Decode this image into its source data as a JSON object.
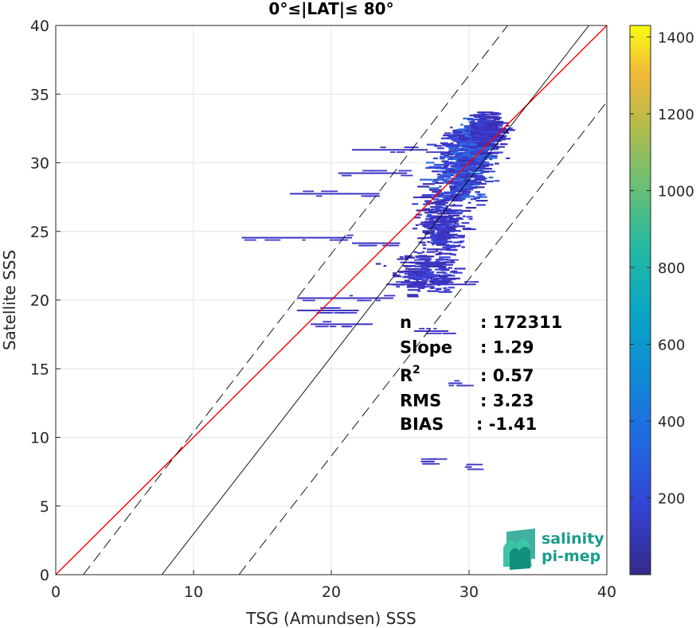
{
  "chart_data": {
    "type": "heatmap",
    "title": "0°≤|LAT|≤ 80°",
    "xlabel": "TSG (Amundsen) SSS",
    "ylabel": "Satellite SSS",
    "xlim": [
      0,
      40
    ],
    "ylim": [
      0,
      40
    ],
    "xticks": [
      0,
      10,
      20,
      30,
      40
    ],
    "yticks": [
      0,
      5,
      10,
      15,
      20,
      25,
      30,
      35,
      40
    ],
    "grid": true,
    "colorbar": {
      "range": [
        0,
        1430
      ],
      "ticks": [
        200,
        400,
        600,
        800,
        1000,
        1200,
        1400
      ],
      "colormap": "parula"
    },
    "lines": [
      {
        "kind": "identity",
        "color": "#ff0000",
        "points": [
          [
            0,
            0
          ],
          [
            40,
            40
          ]
        ]
      },
      {
        "kind": "regression",
        "color": "#000000",
        "points": [
          [
            7.7,
            0
          ],
          [
            38.7,
            40
          ]
        ]
      },
      {
        "kind": "regression-plus-2rms",
        "color": "#000000",
        "dash": true,
        "points": [
          [
            2.0,
            0
          ],
          [
            32.8,
            40
          ]
        ]
      },
      {
        "kind": "regression-minus-2rms",
        "color": "#000000",
        "dash": true,
        "points": [
          [
            13.3,
            0
          ],
          [
            44,
            39.6
          ]
        ]
      }
    ],
    "density_clusters": [
      {
        "x": 29.5,
        "y": 29.5,
        "sx": 1.6,
        "sy": 2.2,
        "weight": 1.0
      },
      {
        "x": 30.5,
        "y": 31.5,
        "sx": 1.3,
        "sy": 1.4,
        "weight": 0.8
      },
      {
        "x": 28.0,
        "y": 25.5,
        "sx": 1.4,
        "sy": 2.0,
        "weight": 0.6
      },
      {
        "x": 27.0,
        "y": 22.0,
        "sx": 2.0,
        "sy": 1.2,
        "weight": 0.45
      },
      {
        "x": 31.5,
        "y": 32.5,
        "sx": 1.0,
        "sy": 1.0,
        "weight": 0.5
      }
    ],
    "streaks": [
      {
        "x1": 13.5,
        "x2": 21.5,
        "y": 24.6
      },
      {
        "x1": 21.5,
        "x2": 25.0,
        "y": 24.2
      },
      {
        "x1": 17.0,
        "x2": 23.5,
        "y": 27.8
      },
      {
        "x1": 20.5,
        "x2": 25.5,
        "y": 29.3
      },
      {
        "x1": 21.5,
        "x2": 27.0,
        "y": 31.0
      },
      {
        "x1": 17.5,
        "x2": 24.5,
        "y": 20.2
      },
      {
        "x1": 17.5,
        "x2": 22.0,
        "y": 19.3
      },
      {
        "x1": 18.5,
        "x2": 23.0,
        "y": 18.3
      },
      {
        "x1": 25.0,
        "x2": 29.0,
        "y": 22.8
      },
      {
        "x1": 24.0,
        "x2": 30.5,
        "y": 21.2
      },
      {
        "x1": 26.0,
        "x2": 28.5,
        "y": 17.8
      },
      {
        "x1": 28.5,
        "x2": 29.5,
        "y": 14.0
      },
      {
        "x1": 26.5,
        "x2": 27.5,
        "y": 8.3
      },
      {
        "x1": 29.7,
        "x2": 30.2,
        "y": 7.9
      }
    ],
    "stats": [
      {
        "label": "n",
        "value": ": 172311",
        "superscript": ""
      },
      {
        "label": "Slope",
        "value": ": 1.29",
        "superscript": ""
      },
      {
        "label": "R",
        "value": ": 0.57",
        "superscript": "2"
      },
      {
        "label": "RMS",
        "value": ": 3.23",
        "superscript": ""
      },
      {
        "label": "BIAS",
        "value": ": -1.41",
        "superscript": ""
      }
    ]
  },
  "logo": {
    "line1": "salinity",
    "line2": "pi-mep"
  }
}
